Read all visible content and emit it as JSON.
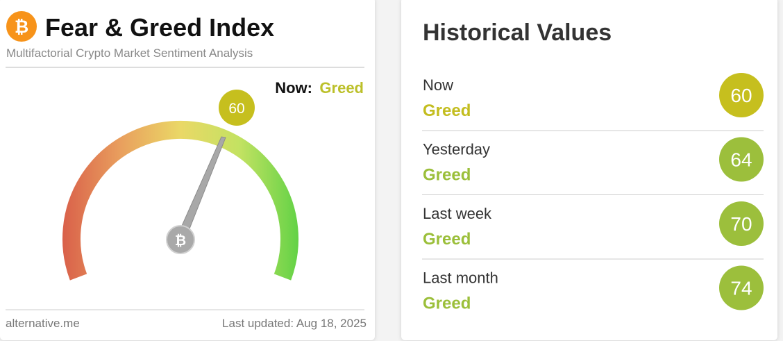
{
  "gauge_panel": {
    "title": "Fear & Greed Index",
    "subtitle": "Multifactorial Crypto Market Sentiment Analysis",
    "now_label": "Now:",
    "now_classification": "Greed",
    "value": 60,
    "footer_source": "alternative.me",
    "footer_updated": "Last updated: Aug 18, 2025"
  },
  "historical_panel": {
    "title": "Historical Values",
    "rows": [
      {
        "label": "Now",
        "classification": "Greed",
        "value": 60
      },
      {
        "label": "Yesterday",
        "classification": "Greed",
        "value": 64
      },
      {
        "label": "Last week",
        "classification": "Greed",
        "value": 70
      },
      {
        "label": "Last month",
        "classification": "Greed",
        "value": 74
      }
    ]
  }
}
